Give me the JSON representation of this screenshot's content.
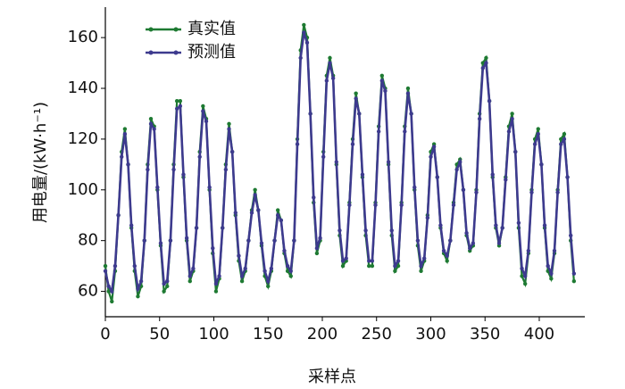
{
  "chart_data": {
    "type": "line",
    "xlabel": "采样点",
    "ylabel": "用电量/(kW·h⁻¹)",
    "x": [
      0,
      3,
      6,
      9,
      12,
      15,
      18,
      21,
      24,
      27,
      30,
      33,
      36,
      39,
      42,
      45,
      48,
      51,
      54,
      57,
      60,
      63,
      66,
      69,
      72,
      75,
      78,
      81,
      84,
      87,
      90,
      93,
      96,
      99,
      102,
      105,
      108,
      111,
      114,
      117,
      120,
      123,
      126,
      129,
      132,
      135,
      138,
      141,
      144,
      147,
      150,
      153,
      156,
      159,
      162,
      165,
      168,
      171,
      174,
      177,
      180,
      183,
      186,
      189,
      192,
      195,
      198,
      201,
      204,
      207,
      210,
      213,
      216,
      219,
      222,
      225,
      228,
      231,
      234,
      237,
      240,
      243,
      246,
      249,
      252,
      255,
      258,
      261,
      264,
      267,
      270,
      273,
      276,
      279,
      282,
      285,
      288,
      291,
      294,
      297,
      300,
      303,
      306,
      309,
      312,
      315,
      318,
      321,
      324,
      327,
      330,
      333,
      336,
      339,
      342,
      345,
      348,
      351,
      354,
      357,
      360,
      363,
      366,
      369,
      372,
      375,
      378,
      381,
      384,
      387,
      390,
      393,
      396,
      399,
      402,
      405,
      408,
      411,
      414,
      417,
      420,
      423,
      426,
      429,
      432
    ],
    "series": [
      {
        "name": "真实值",
        "color": "#1e7a32",
        "values": [
          70,
          60,
          56,
          68,
          90,
          115,
          124,
          110,
          85,
          68,
          58,
          62,
          80,
          110,
          128,
          125,
          100,
          78,
          60,
          62,
          80,
          110,
          135,
          135,
          105,
          80,
          64,
          68,
          85,
          115,
          133,
          128,
          100,
          75,
          60,
          65,
          85,
          110,
          126,
          115,
          90,
          72,
          64,
          68,
          80,
          92,
          100,
          92,
          78,
          66,
          62,
          68,
          80,
          92,
          88,
          75,
          68,
          66,
          80,
          120,
          155,
          165,
          160,
          130,
          95,
          75,
          80,
          115,
          145,
          152,
          145,
          110,
          82,
          70,
          72,
          95,
          120,
          138,
          130,
          105,
          82,
          70,
          70,
          95,
          125,
          145,
          140,
          110,
          82,
          68,
          70,
          95,
          125,
          140,
          130,
          100,
          78,
          68,
          72,
          90,
          115,
          118,
          105,
          85,
          75,
          72,
          80,
          95,
          110,
          112,
          100,
          82,
          76,
          78,
          100,
          130,
          150,
          152,
          135,
          105,
          85,
          78,
          85,
          105,
          125,
          130,
          115,
          85,
          66,
          63,
          75,
          100,
          120,
          124,
          110,
          85,
          68,
          65,
          75,
          100,
          120,
          122,
          105,
          80,
          64
        ]
      },
      {
        "name": "预测值",
        "color": "#3d3a8e",
        "values": [
          68,
          62,
          60,
          70,
          90,
          113,
          122,
          110,
          86,
          70,
          61,
          64,
          80,
          108,
          126,
          124,
          101,
          79,
          63,
          64,
          80,
          108,
          132,
          133,
          106,
          81,
          66,
          69,
          85,
          113,
          131,
          127,
          101,
          77,
          63,
          66,
          85,
          108,
          124,
          115,
          91,
          74,
          66,
          69,
          80,
          91,
          98,
          92,
          79,
          68,
          64,
          69,
          80,
          90,
          88,
          76,
          70,
          68,
          80,
          118,
          152,
          162,
          158,
          130,
          97,
          77,
          81,
          113,
          143,
          150,
          144,
          111,
          84,
          72,
          73,
          94,
          118,
          136,
          130,
          106,
          84,
          72,
          72,
          94,
          123,
          143,
          139,
          111,
          84,
          70,
          72,
          94,
          123,
          138,
          130,
          101,
          80,
          70,
          73,
          89,
          113,
          117,
          105,
          86,
          76,
          74,
          80,
          94,
          108,
          111,
          100,
          83,
          77,
          79,
          99,
          128,
          148,
          150,
          135,
          106,
          86,
          79,
          85,
          104,
          123,
          128,
          115,
          87,
          69,
          66,
          76,
          99,
          118,
          122,
          110,
          86,
          70,
          67,
          76,
          99,
          118,
          120,
          105,
          82,
          67
        ]
      }
    ],
    "xlim": [
      0,
      442
    ],
    "ylim": [
      50,
      172
    ],
    "xticks": [
      0,
      50,
      100,
      150,
      200,
      250,
      300,
      350,
      400
    ],
    "yticks": [
      60,
      80,
      100,
      120,
      140,
      160
    ],
    "legend": "upper left"
  }
}
